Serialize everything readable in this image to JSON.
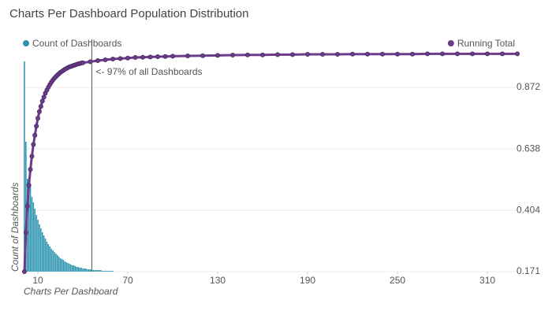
{
  "chart_data": {
    "type": "combo",
    "title": "Charts Per Dashboard Population Distribution",
    "x_label": "Charts Per Dashboard",
    "y_label": "Count of Dashboards",
    "xlim": [
      0.5,
      330.5
    ],
    "xticks": [
      10,
      70,
      130,
      190,
      250,
      310
    ],
    "ylim": [
      0,
      300
    ],
    "y2lim": [
      0.171,
      1.07
    ],
    "y2ticks": [
      0.171,
      0.404,
      0.638,
      0.872
    ],
    "grid": true,
    "annotation": {
      "text": "<- 97% of all Dashboards",
      "x": 46
    },
    "series": [
      {
        "name": "Count of Dashboards",
        "type": "bar",
        "color": "#2a93b0",
        "x": [
          1,
          2,
          3,
          4,
          5,
          6,
          7,
          8,
          9,
          10,
          11,
          12,
          13,
          14,
          15,
          16,
          17,
          18,
          19,
          20,
          21,
          22,
          23,
          24,
          25,
          26,
          27,
          28,
          29,
          30,
          31,
          32,
          33,
          34,
          35,
          36,
          37,
          38,
          39,
          40,
          41,
          42,
          43,
          44,
          45,
          46,
          47,
          48,
          49,
          50,
          51,
          52,
          53,
          54,
          55,
          56,
          57,
          58,
          59,
          60
        ],
        "values": [
          267,
          165,
          118,
          120,
          108,
          95,
          88,
          80,
          72,
          66,
          60,
          55,
          50,
          46,
          42,
          38,
          35,
          32,
          29,
          27,
          25,
          23,
          21,
          19,
          17,
          16,
          15,
          13,
          12,
          11,
          10,
          9,
          8,
          8,
          7,
          6,
          6,
          5,
          5,
          4,
          4,
          4,
          3,
          3,
          3,
          3,
          2,
          2,
          2,
          2,
          2,
          2,
          1,
          1,
          1,
          1,
          1,
          1,
          1,
          1
        ]
      },
      {
        "name": "Running Total",
        "type": "line",
        "axis": "y2",
        "color": "#6b3d8a",
        "x": [
          1,
          2,
          3,
          4,
          5,
          6,
          7,
          8,
          9,
          10,
          11,
          12,
          13,
          14,
          15,
          16,
          17,
          18,
          19,
          20,
          21,
          22,
          23,
          24,
          25,
          26,
          27,
          28,
          29,
          30,
          31,
          32,
          33,
          34,
          35,
          36,
          37,
          38,
          39,
          40,
          45,
          50,
          55,
          60,
          65,
          70,
          75,
          80,
          85,
          90,
          95,
          100,
          110,
          120,
          130,
          140,
          150,
          160,
          170,
          180,
          190,
          200,
          210,
          220,
          230,
          240,
          250,
          260,
          270,
          280,
          290,
          300,
          310,
          320,
          330
        ],
        "values": [
          0.171,
          0.32,
          0.42,
          0.5,
          0.56,
          0.61,
          0.655,
          0.69,
          0.725,
          0.755,
          0.78,
          0.8,
          0.82,
          0.835,
          0.85,
          0.862,
          0.873,
          0.883,
          0.892,
          0.9,
          0.907,
          0.913,
          0.919,
          0.924,
          0.929,
          0.933,
          0.937,
          0.941,
          0.944,
          0.947,
          0.95,
          0.952,
          0.954,
          0.956,
          0.958,
          0.96,
          0.962,
          0.963,
          0.965,
          0.966,
          0.97,
          0.974,
          0.977,
          0.98,
          0.982,
          0.984,
          0.986,
          0.987,
          0.988,
          0.989,
          0.99,
          0.991,
          0.992,
          0.993,
          0.994,
          0.995,
          0.996,
          0.996,
          0.997,
          0.997,
          0.998,
          0.998,
          0.998,
          0.999,
          0.999,
          0.999,
          0.999,
          0.999,
          1.0,
          1.0,
          1.0,
          1.0,
          1.0,
          1.0,
          1.0
        ]
      }
    ]
  }
}
